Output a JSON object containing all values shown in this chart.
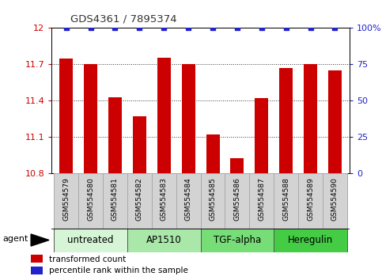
{
  "title": "GDS4361 / 7895374",
  "samples": [
    "GSM554579",
    "GSM554580",
    "GSM554581",
    "GSM554582",
    "GSM554583",
    "GSM554584",
    "GSM554585",
    "GSM554586",
    "GSM554587",
    "GSM554588",
    "GSM554589",
    "GSM554590"
  ],
  "bar_values": [
    11.75,
    11.7,
    11.43,
    11.27,
    11.755,
    11.7,
    11.12,
    10.93,
    11.42,
    11.67,
    11.7,
    11.65
  ],
  "percentile_values": [
    100,
    100,
    100,
    100,
    100,
    100,
    100,
    100,
    100,
    100,
    100,
    100
  ],
  "bar_color": "#cc0000",
  "percentile_color": "#2222cc",
  "ylim_left": [
    10.8,
    12.0
  ],
  "ylim_right": [
    0,
    100
  ],
  "yticks_left": [
    10.8,
    11.1,
    11.4,
    11.7,
    12.0
  ],
  "yticks_right": [
    0,
    25,
    50,
    75,
    100
  ],
  "ytick_labels_left": [
    "10.8",
    "11.1",
    "11.4",
    "11.7",
    "12"
  ],
  "ytick_labels_right": [
    "0",
    "25",
    "50",
    "75",
    "100%"
  ],
  "groups": [
    {
      "label": "untreated",
      "start": 0,
      "end": 2,
      "color": "#d6f5d6"
    },
    {
      "label": "AP1510",
      "start": 3,
      "end": 5,
      "color": "#aae8aa"
    },
    {
      "label": "TGF-alpha",
      "start": 6,
      "end": 8,
      "color": "#77dd77"
    },
    {
      "label": "Heregulin",
      "start": 9,
      "end": 11,
      "color": "#44cc44"
    }
  ],
  "agent_label": "agent",
  "legend_bar_label": "transformed count",
  "legend_pct_label": "percentile rank within the sample",
  "bar_width": 0.55,
  "background_color": "#ffffff",
  "plot_bg_color": "#ffffff",
  "grid_color": "#333333",
  "tick_label_color_left": "#cc0000",
  "tick_label_color_right": "#2222cc",
  "sample_box_color": "#d3d3d3",
  "sample_box_edge": "#aaaaaa"
}
